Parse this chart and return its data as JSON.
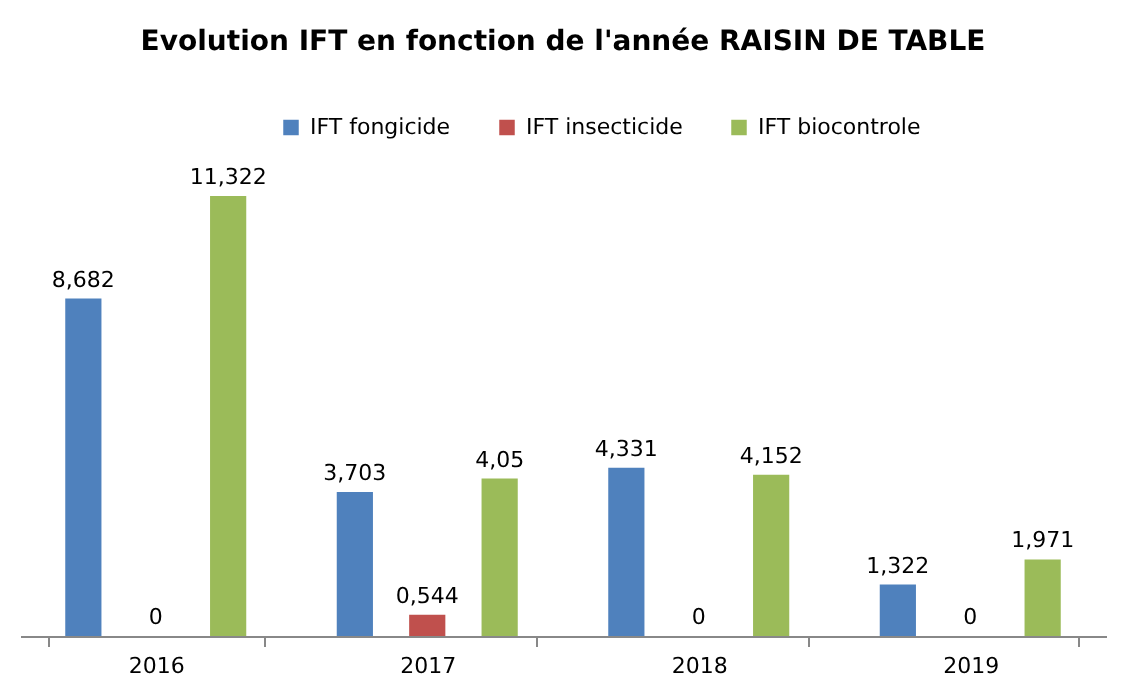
{
  "chart_data": {
    "type": "bar",
    "title": "Evolution IFT en fonction de l'année RAISIN DE TABLE",
    "categories": [
      "2016",
      "2017",
      "2018",
      "2019"
    ],
    "series": [
      {
        "name": "IFT fongicide",
        "color": "#4f81bd",
        "values": [
          8.682,
          3.703,
          4.331,
          1.322
        ],
        "value_labels": [
          "8,682",
          "3,703",
          "4,331",
          "1,322"
        ]
      },
      {
        "name": "IFT insecticide",
        "color": "#c0504d",
        "values": [
          0,
          0.544,
          0,
          0
        ],
        "value_labels": [
          "0",
          "0,544",
          "0",
          "0"
        ]
      },
      {
        "name": "IFT biocontrole",
        "color": "#9bbb59",
        "values": [
          11.322,
          4.05,
          4.152,
          1.971
        ],
        "value_labels": [
          "11,322",
          "4,05",
          "4,152",
          "1,971"
        ]
      }
    ],
    "legend": "top"
  }
}
